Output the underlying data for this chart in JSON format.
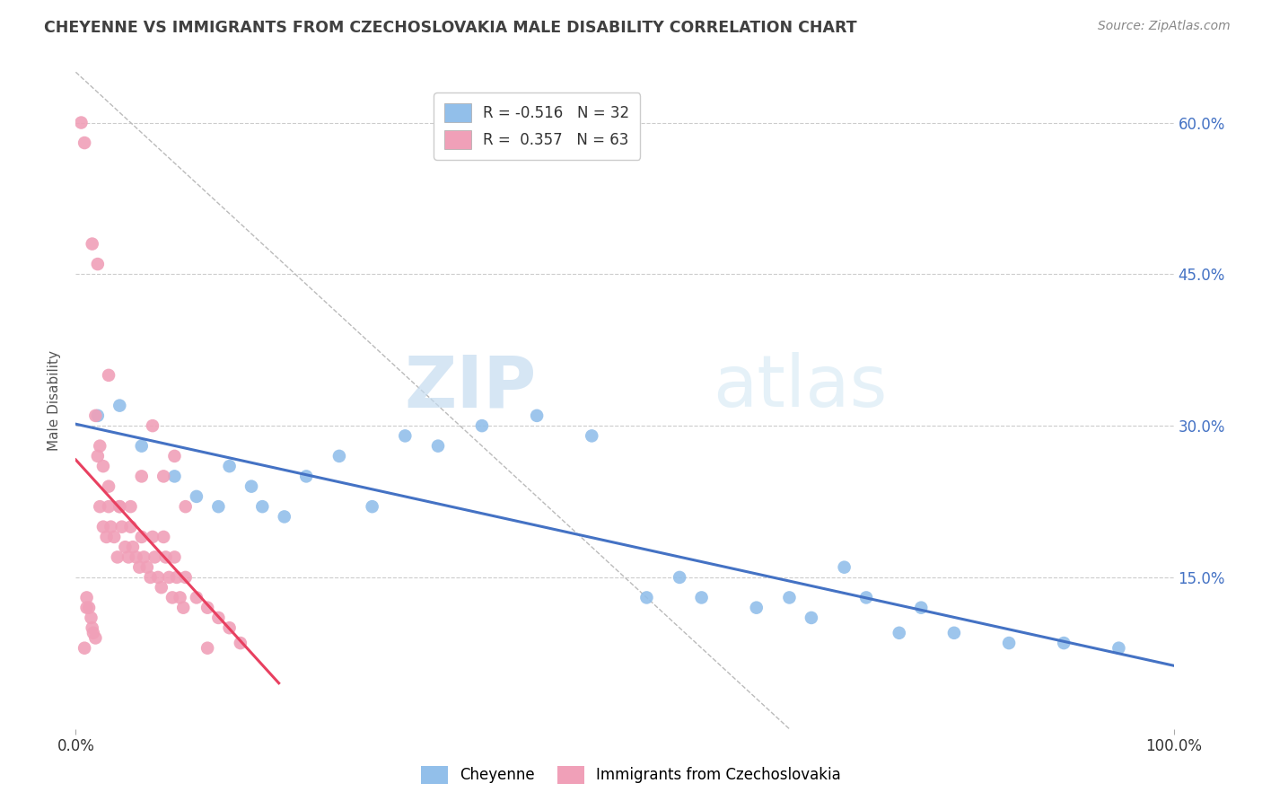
{
  "title": "CHEYENNE VS IMMIGRANTS FROM CZECHOSLOVAKIA MALE DISABILITY CORRELATION CHART",
  "source": "Source: ZipAtlas.com",
  "ylabel": "Male Disability",
  "watermark_zip": "ZIP",
  "watermark_atlas": "atlas",
  "xlim": [
    0.0,
    1.0
  ],
  "ylim": [
    0.0,
    0.65
  ],
  "xtick_positions": [
    0.0,
    1.0
  ],
  "xtick_labels": [
    "0.0%",
    "100.0%"
  ],
  "ytick_values": [
    0.15,
    0.3,
    0.45,
    0.6
  ],
  "ytick_labels": [
    "15.0%",
    "30.0%",
    "45.0%",
    "60.0%"
  ],
  "legend_r1": "R = -0.516",
  "legend_n1": "N = 32",
  "legend_r2": "R =  0.357",
  "legend_n2": "N = 63",
  "color_blue": "#92BFEA",
  "color_pink": "#F0A0B8",
  "color_blue_line": "#4472C4",
  "color_pink_line": "#E84060",
  "title_color": "#404040",
  "source_color": "#888888",
  "axis_label_color": "#4472C4",
  "cheyenne_x": [
    0.02,
    0.04,
    0.06,
    0.09,
    0.11,
    0.13,
    0.14,
    0.16,
    0.17,
    0.19,
    0.21,
    0.24,
    0.27,
    0.3,
    0.33,
    0.37,
    0.42,
    0.47,
    0.52,
    0.57,
    0.62,
    0.67,
    0.72,
    0.77,
    0.55,
    0.65,
    0.7,
    0.75,
    0.8,
    0.85,
    0.9,
    0.95
  ],
  "cheyenne_y": [
    0.31,
    0.32,
    0.28,
    0.25,
    0.23,
    0.22,
    0.26,
    0.24,
    0.22,
    0.21,
    0.25,
    0.27,
    0.22,
    0.29,
    0.28,
    0.3,
    0.31,
    0.29,
    0.13,
    0.13,
    0.12,
    0.11,
    0.13,
    0.12,
    0.15,
    0.13,
    0.16,
    0.095,
    0.095,
    0.085,
    0.085,
    0.08
  ],
  "czecho_x": [
    0.005,
    0.008,
    0.01,
    0.012,
    0.014,
    0.015,
    0.016,
    0.018,
    0.02,
    0.022,
    0.025,
    0.028,
    0.03,
    0.032,
    0.035,
    0.038,
    0.04,
    0.042,
    0.045,
    0.048,
    0.05,
    0.052,
    0.055,
    0.058,
    0.06,
    0.062,
    0.065,
    0.068,
    0.07,
    0.072,
    0.075,
    0.078,
    0.08,
    0.082,
    0.085,
    0.088,
    0.09,
    0.092,
    0.095,
    0.098,
    0.1,
    0.11,
    0.12,
    0.13,
    0.14,
    0.15,
    0.08,
    0.09,
    0.1,
    0.07,
    0.06,
    0.05,
    0.04,
    0.03,
    0.02,
    0.015,
    0.01,
    0.008,
    0.018,
    0.022,
    0.025,
    0.03,
    0.12
  ],
  "czecho_y": [
    0.6,
    0.58,
    0.13,
    0.12,
    0.11,
    0.1,
    0.095,
    0.09,
    0.27,
    0.22,
    0.2,
    0.19,
    0.22,
    0.2,
    0.19,
    0.17,
    0.22,
    0.2,
    0.18,
    0.17,
    0.2,
    0.18,
    0.17,
    0.16,
    0.19,
    0.17,
    0.16,
    0.15,
    0.19,
    0.17,
    0.15,
    0.14,
    0.19,
    0.17,
    0.15,
    0.13,
    0.17,
    0.15,
    0.13,
    0.12,
    0.15,
    0.13,
    0.12,
    0.11,
    0.1,
    0.085,
    0.25,
    0.27,
    0.22,
    0.3,
    0.25,
    0.22,
    0.22,
    0.24,
    0.46,
    0.48,
    0.12,
    0.08,
    0.31,
    0.28,
    0.26,
    0.35,
    0.08
  ],
  "ref_line_x": [
    0.0,
    0.65
  ],
  "ref_line_y": [
    0.65,
    0.0
  ]
}
